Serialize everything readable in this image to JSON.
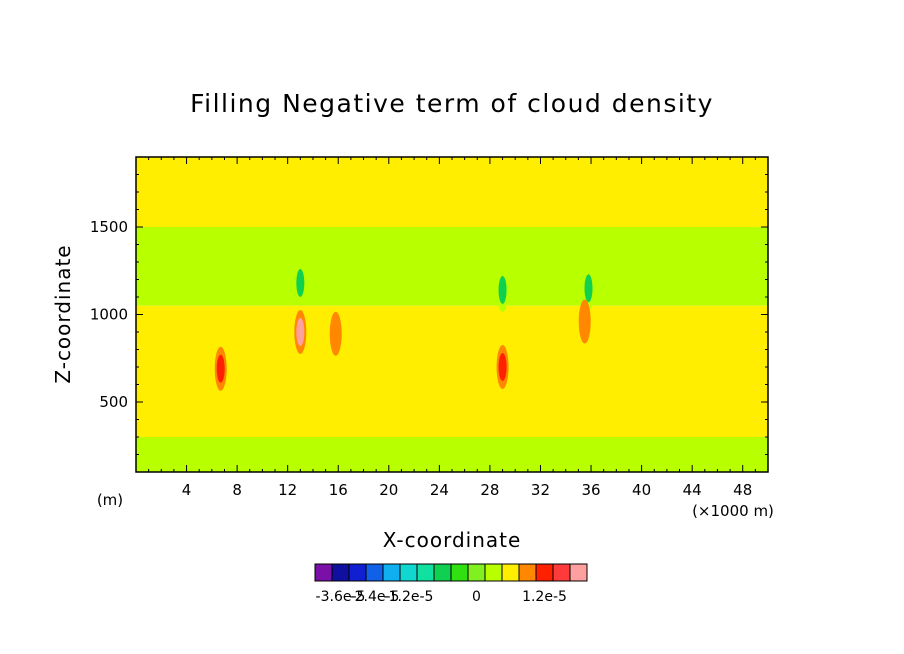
{
  "chart_data": {
    "type": "heatmap",
    "title": "Filling Negative term of cloud density",
    "xlabel": "X-coordinate",
    "ylabel": "Z-coordinate",
    "x_unit_left": "(m)",
    "x_unit_right": "(×1000 m)",
    "xlim": [
      0,
      50
    ],
    "ylim": [
      100,
      1900
    ],
    "x_ticks": [
      "4",
      "8",
      "12",
      "16",
      "20",
      "24",
      "28",
      "32",
      "36",
      "40",
      "44",
      "48"
    ],
    "x_tick_values": [
      4,
      8,
      12,
      16,
      20,
      24,
      28,
      32,
      36,
      40,
      44,
      48
    ],
    "y_ticks": [
      "500",
      "1000",
      "1500"
    ],
    "y_tick_values": [
      500,
      1000,
      1500
    ],
    "grid": false,
    "colorbar": {
      "colors": [
        "#7a10a8",
        "#1010a0",
        "#1020d0",
        "#1060e8",
        "#10b0f0",
        "#10d8d0",
        "#10e0a0",
        "#10d050",
        "#30e010",
        "#80f020",
        "#b8ff00",
        "#ffee00",
        "#ff8800",
        "#ff2000",
        "#ff3a3a",
        "#ffa0a0"
      ],
      "labels": [
        "-3.6e-5",
        "-2.4e-5",
        "-1.2e-5",
        "0",
        "1.2e-5"
      ],
      "label_values": [
        -3.6e-05,
        -2.4e-05,
        -1.2e-05,
        0,
        1.2e-05
      ]
    },
    "bands": [
      {
        "z": [
          1500,
          1900
        ],
        "level": "0"
      },
      {
        "z": [
          1050,
          1500
        ],
        "level": "-3e-6"
      },
      {
        "z": [
          700,
          1050
        ],
        "level": "0"
      },
      {
        "z": [
          300,
          700
        ],
        "level": "0"
      },
      {
        "z": [
          100,
          300
        ],
        "level": "-3e-6"
      }
    ],
    "features": [
      {
        "x": 13.0,
        "z": 900,
        "level": "1.2e-5",
        "kind": "positive max"
      },
      {
        "x": 6.7,
        "z": 690,
        "level": "6e-6",
        "kind": "positive"
      },
      {
        "x": 29.0,
        "z": 700,
        "level": "6e-6",
        "kind": "positive"
      },
      {
        "x": 13.0,
        "z": 1180,
        "level": "-6e-6",
        "kind": "negative"
      },
      {
        "x": 29.0,
        "z": 1140,
        "level": "-6e-6",
        "kind": "negative"
      },
      {
        "x": 35.8,
        "z": 1150,
        "level": "-6e-6",
        "kind": "negative"
      },
      {
        "x": 15.8,
        "z": 890,
        "level": "3e-6",
        "kind": "positive"
      },
      {
        "x": 35.5,
        "z": 960,
        "level": "3e-6",
        "kind": "positive"
      }
    ]
  }
}
